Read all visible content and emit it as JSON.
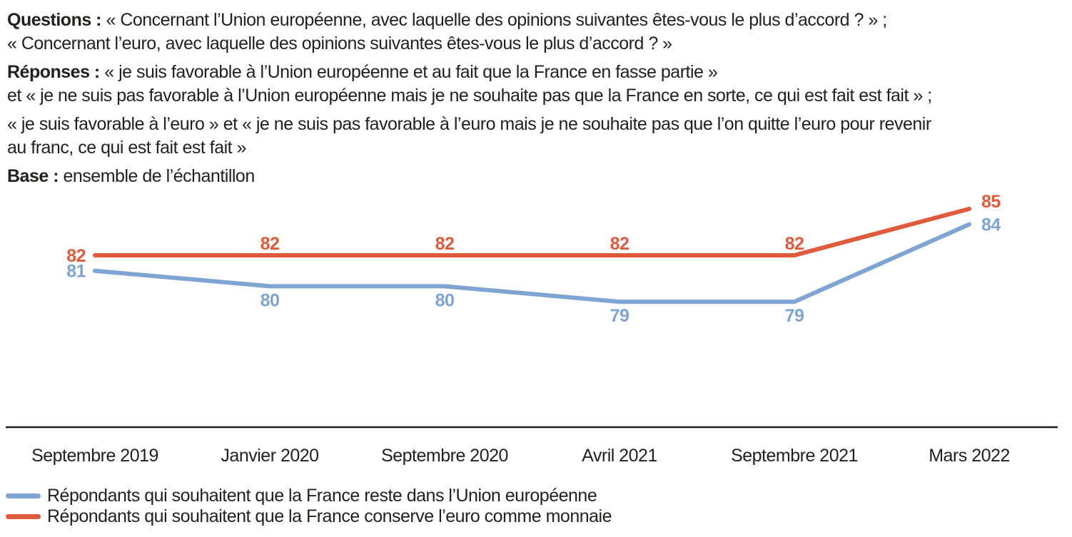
{
  "header": {
    "questions_label": "Questions :",
    "questions_line1": "« Concernant l’Union européenne, avec laquelle des opinions suivantes êtes-vous le plus d’accord ? » ;",
    "questions_line2": "« Concernant l’euro, avec laquelle des opinions suivantes êtes-vous le plus d’accord ? »",
    "reponses_label": "Réponses :",
    "reponses_line1": "« je suis favorable à l’Union européenne et au fait que la France en fasse partie »",
    "reponses_line2": "et « je ne suis pas favorable à l’Union européenne mais je ne souhaite pas que la France en sorte, ce qui est fait est fait » ;",
    "reponses_line3": "« je suis favorable à l’euro » et « je ne suis pas favorable à l’euro mais je ne souhaite pas que l’on quitte l’euro pour revenir",
    "reponses_line4": "au franc, ce qui est fait est fait »",
    "base_label": "Base :",
    "base_text": "ensemble de l’échantillon"
  },
  "colors": {
    "text": "#221F1F",
    "axis": "#221F1F",
    "background": "#FFFFFF",
    "series_blue": "#7EA4D1",
    "series_orange": "#E05A3C"
  },
  "chart_data": {
    "type": "line",
    "title": "",
    "xlabel": "",
    "ylabel": "",
    "categories": [
      "Septembre 2019",
      "Janvier 2020",
      "Septembre 2020",
      "Avril 2021",
      "Septembre 2021",
      "Mars 2022"
    ],
    "series": [
      {
        "name": "Répondants qui souhaitent que la France reste dans l’Union européenne",
        "color": "#7EA4D1",
        "values": [
          81,
          80,
          80,
          79,
          79,
          84
        ]
      },
      {
        "name": "Répondants qui souhaitent que la France conserve l’euro comme monnaie",
        "color": "#E05A3C",
        "values": [
          82,
          82,
          82,
          82,
          82,
          85
        ]
      }
    ],
    "ylim": [
      77,
      87
    ],
    "grid": false,
    "value_labels": true,
    "legend_position": "bottom-left"
  }
}
